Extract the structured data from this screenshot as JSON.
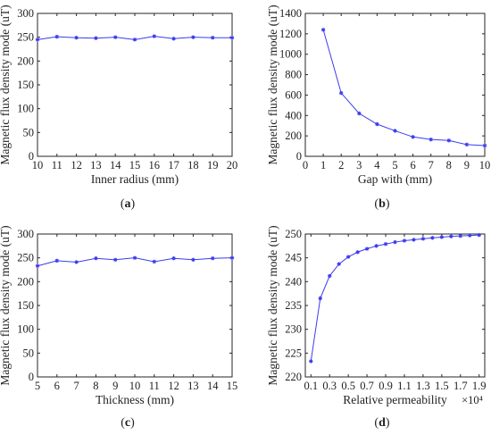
{
  "colors": {
    "series": "#3b3bf0",
    "axis": "#262626"
  },
  "chart_data": [
    {
      "id": "a",
      "type": "line",
      "panel_label": "a",
      "xlabel": "Inner radius (mm)",
      "ylabel": "Magnetic flux density mode (uT)",
      "xlim": [
        10,
        20
      ],
      "ylim": [
        0,
        300
      ],
      "xticks": [
        10,
        11,
        12,
        13,
        14,
        15,
        16,
        17,
        18,
        19,
        20
      ],
      "yticks": [
        0,
        50,
        100,
        150,
        200,
        250,
        300
      ],
      "x": [
        10,
        11,
        12,
        13,
        14,
        15,
        16,
        17,
        18,
        19,
        20
      ],
      "series": [
        {
          "values": [
            245,
            251,
            249,
            248,
            250,
            245,
            252,
            247,
            250,
            249,
            249
          ]
        }
      ],
      "grid": false,
      "exponent_label": ""
    },
    {
      "id": "b",
      "type": "line",
      "panel_label": "b",
      "xlabel": "Gap with (mm)",
      "ylabel": "Magnetic flux density mode (uT)",
      "xlim": [
        0,
        10
      ],
      "ylim": [
        0,
        1400
      ],
      "xticks": [
        0,
        1,
        2,
        3,
        4,
        5,
        6,
        7,
        8,
        9,
        10
      ],
      "yticks": [
        0,
        200,
        400,
        600,
        800,
        1000,
        1200,
        1400
      ],
      "x": [
        1,
        2,
        3,
        4,
        5,
        6,
        7,
        8,
        9,
        10
      ],
      "series": [
        {
          "values": [
            1240,
            620,
            420,
            315,
            250,
            190,
            165,
            155,
            115,
            105
          ]
        }
      ],
      "grid": false,
      "exponent_label": ""
    },
    {
      "id": "c",
      "type": "line",
      "panel_label": "c",
      "xlabel": "Thickness (mm)",
      "ylabel": "Magnetic flux density mode (uT)",
      "xlim": [
        5,
        15
      ],
      "ylim": [
        0,
        300
      ],
      "xticks": [
        5,
        6,
        7,
        8,
        9,
        10,
        11,
        12,
        13,
        14,
        15
      ],
      "yticks": [
        0,
        50,
        100,
        150,
        200,
        250,
        300
      ],
      "x": [
        5,
        6,
        7,
        8,
        9,
        10,
        11,
        12,
        13,
        14,
        15
      ],
      "series": [
        {
          "values": [
            233,
            244,
            241,
            249,
            246,
            250,
            242,
            249,
            246,
            249,
            250
          ]
        }
      ],
      "grid": false,
      "exponent_label": ""
    },
    {
      "id": "d",
      "type": "line",
      "panel_label": "d",
      "xlabel": "Relative permeability",
      "ylabel": "Magnetic flux density mode (uT)",
      "xlim": [
        0.04,
        1.96
      ],
      "ylim": [
        220,
        250
      ],
      "xticks": [
        0.1,
        0.3,
        0.5,
        0.7,
        0.9,
        1.1,
        1.3,
        1.5,
        1.7,
        1.9
      ],
      "xtick_labels": [
        "0.1",
        "0.3",
        "0.5",
        "0.7",
        "0.9",
        "1.1",
        "1.3",
        "1.5",
        "1.7",
        "1.9"
      ],
      "yticks": [
        220,
        225,
        230,
        235,
        240,
        245,
        250
      ],
      "x": [
        0.1,
        0.2,
        0.3,
        0.4,
        0.5,
        0.6,
        0.7,
        0.8,
        0.9,
        1.0,
        1.1,
        1.2,
        1.3,
        1.4,
        1.5,
        1.6,
        1.7,
        1.8,
        1.9
      ],
      "series": [
        {
          "values": [
            223.3,
            236.5,
            241.2,
            243.7,
            245.2,
            246.2,
            246.9,
            247.5,
            247.9,
            248.3,
            248.6,
            248.8,
            249.0,
            249.2,
            249.35,
            249.5,
            249.6,
            249.7,
            249.8
          ]
        }
      ],
      "grid": false,
      "exponent_label": "×10⁴"
    }
  ]
}
